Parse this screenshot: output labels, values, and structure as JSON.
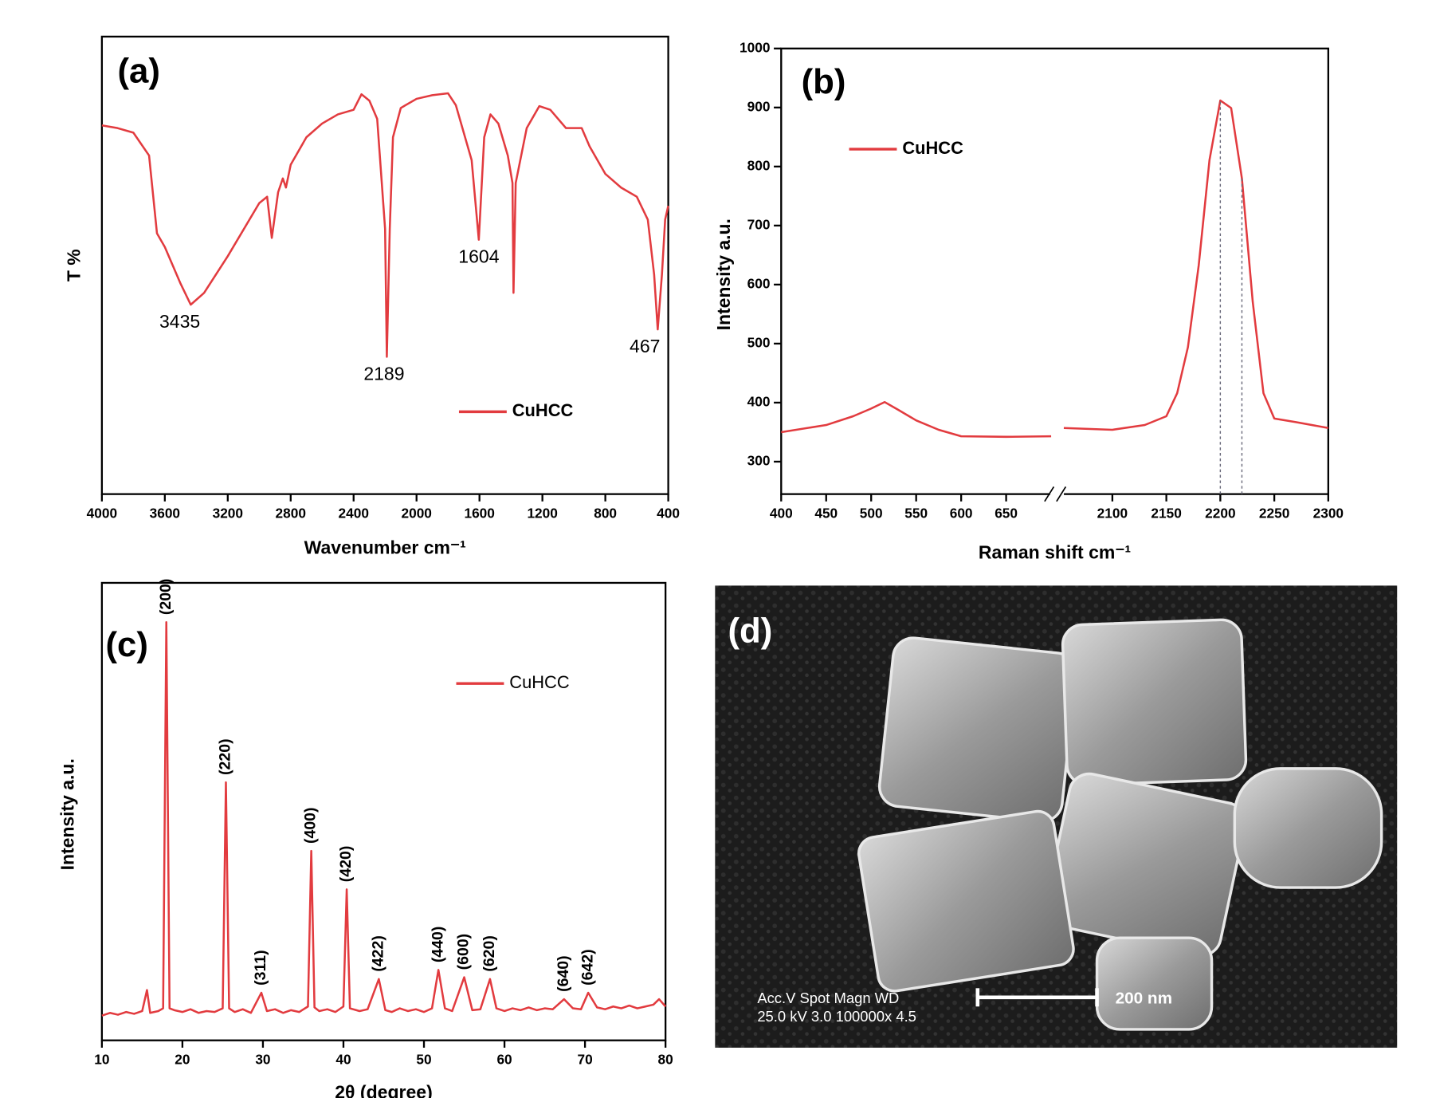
{
  "chart_data": [
    {
      "type": "line",
      "label": "(a)",
      "xlabel": "Wavenumber cm⁻¹",
      "ylabel": "T %",
      "xlim": [
        4000,
        400
      ],
      "xticks": [
        4000,
        3600,
        3200,
        2800,
        2400,
        2000,
        1600,
        1200,
        800,
        400
      ],
      "ylim": [
        0,
        100
      ],
      "legend": "lower right",
      "x": [
        4000,
        3900,
        3800,
        3700,
        3650,
        3600,
        3500,
        3435,
        3350,
        3200,
        3000,
        2950,
        2920,
        2880,
        2850,
        2830,
        2800,
        2700,
        2600,
        2500,
        2400,
        2350,
        2300,
        2250,
        2200,
        2189,
        2170,
        2150,
        2100,
        2000,
        1900,
        1800,
        1750,
        1700,
        1650,
        1604,
        1570,
        1530,
        1480,
        1420,
        1390,
        1384,
        1370,
        1300,
        1220,
        1150,
        1050,
        950,
        900,
        800,
        700,
        600,
        530,
        490,
        467,
        440,
        420,
        400
      ],
      "series": [
        {
          "name": "CuHCC",
          "color": "#e23b3f",
          "values": [
            80.6,
            80,
            79,
            74,
            57,
            54,
            46,
            41.4,
            44,
            52,
            63.6,
            65,
            56,
            66,
            69,
            67,
            72,
            78,
            81,
            83,
            84,
            87.4,
            86,
            82,
            58,
            30,
            58,
            78,
            84.4,
            86.4,
            87.2,
            87.6,
            85,
            79,
            73,
            55.6,
            78,
            83,
            81,
            74,
            68,
            44,
            68,
            80,
            84.8,
            84,
            80,
            80,
            76,
            70,
            67,
            65,
            60,
            48,
            36,
            48,
            60,
            63
          ]
        }
      ],
      "annotations": [
        "3435",
        "2189",
        "1604",
        "467"
      ]
    },
    {
      "type": "line",
      "label": "(b)",
      "xlabel": "Raman shift cm⁻¹",
      "ylabel": "Intensity a.u.",
      "xlim": [
        400,
        2300
      ],
      "xbreak": [
        705,
        2050
      ],
      "xticks": [
        400,
        450,
        500,
        550,
        600,
        650,
        2100,
        2150,
        2200,
        2250,
        2300
      ],
      "ylim": [
        245,
        1000
      ],
      "yticks": [
        300,
        400,
        500,
        600,
        700,
        800,
        900,
        1000
      ],
      "legend": "upper left",
      "x": [
        400,
        450,
        480,
        500,
        515,
        530,
        550,
        575,
        600,
        650,
        700,
        2055,
        2100,
        2130,
        2150,
        2160,
        2170,
        2180,
        2190,
        2200,
        2210,
        2220,
        2230,
        2240,
        2250,
        2270,
        2300
      ],
      "series": [
        {
          "name": "CuHCC",
          "color": "#e23b3f",
          "values": [
            350,
            362,
            377,
            390,
            401,
            388,
            370,
            354,
            343,
            342,
            343,
            357,
            354,
            362,
            377,
            416,
            494,
            633,
            811,
            912,
            899,
            780,
            571,
            416,
            373,
            367,
            357
          ]
        }
      ],
      "vlines": [
        2200,
        2220
      ]
    },
    {
      "type": "line",
      "label": "(c)",
      "xlabel": "2θ (degree)",
      "ylabel": "Intensity a.u.",
      "xlim": [
        10,
        80
      ],
      "xticks": [
        10,
        20,
        30,
        40,
        50,
        60,
        70,
        80
      ],
      "ylim": [
        0,
        100
      ],
      "legend": "upper right",
      "x": [
        10,
        11,
        12,
        13,
        14,
        15,
        15.6,
        16,
        17,
        17.6,
        18,
        18.4,
        19,
        20,
        21,
        22,
        23,
        24,
        25,
        25.4,
        25.8,
        26.5,
        27.5,
        28.5,
        29.8,
        30.5,
        31.5,
        32.5,
        33.5,
        34.5,
        35.6,
        36,
        36.4,
        37,
        38,
        39,
        40,
        40.4,
        40.8,
        42,
        43,
        44.4,
        45.2,
        46,
        47,
        48,
        49,
        50,
        51,
        51.8,
        52.6,
        53.5,
        55,
        56,
        57,
        58.2,
        59,
        60,
        61,
        62,
        63,
        64,
        65,
        66,
        67.4,
        68.5,
        69.5,
        70.4,
        71.5,
        72.5,
        73.5,
        74.5,
        75.5,
        76.5,
        77.5,
        78.5,
        79.2,
        80
      ],
      "series": [
        {
          "name": "CuHCC",
          "color": "#e23b3f",
          "values": [
            5.4,
            6,
            5.6,
            6.2,
            5.8,
            6.4,
            11,
            6,
            6.4,
            7,
            91.4,
            7,
            6.6,
            6.2,
            6.8,
            6,
            6.4,
            6.2,
            7,
            56.4,
            7,
            6.2,
            6.8,
            6,
            10.4,
            6.4,
            6.8,
            6,
            6.6,
            6.2,
            7.4,
            41.4,
            7.2,
            6.4,
            6.8,
            6.2,
            7.4,
            33,
            7,
            6.4,
            6.8,
            13.4,
            6.6,
            6.2,
            7,
            6.4,
            6.8,
            6.2,
            7,
            15.4,
            7,
            6.4,
            13.8,
            6.6,
            6.8,
            13.4,
            7,
            6.4,
            7,
            6.6,
            7.2,
            6.6,
            7,
            6.8,
            9,
            7,
            6.8,
            10.4,
            7.2,
            6.8,
            7.4,
            7,
            7.6,
            7,
            7.4,
            7.8,
            9,
            7.4
          ]
        }
      ],
      "peak_labels": [
        {
          "label": "(200)",
          "x": 18
        },
        {
          "label": "(220)",
          "x": 25.4
        },
        {
          "label": "(311)",
          "x": 29.8
        },
        {
          "label": "(400)",
          "x": 36
        },
        {
          "label": "(420)",
          "x": 40.4
        },
        {
          "label": "(422)",
          "x": 44.4
        },
        {
          "label": "(440)",
          "x": 51.8
        },
        {
          "label": "(600)",
          "x": 55
        },
        {
          "label": "(620)",
          "x": 58.2
        },
        {
          "label": "(640)",
          "x": 67.4
        },
        {
          "label": "(642)",
          "x": 70.4
        }
      ]
    }
  ],
  "sem_image": {
    "label": "(d)",
    "info_line1": "Acc.V   Spot Magn    WD",
    "info_line2": "25.0 kV 3.0   100000x 4.5",
    "scale_bar": "200 nm"
  }
}
